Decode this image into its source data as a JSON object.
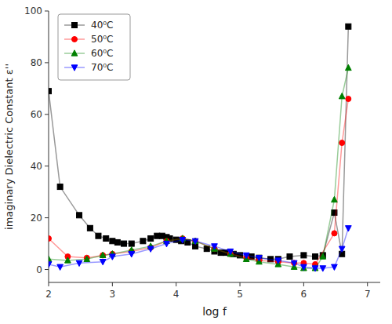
{
  "chart_data": {
    "type": "line",
    "xlabel": "log f",
    "ylabel": "imaginary Dielectric Constant ε''",
    "xlim": [
      2,
      7.2
    ],
    "ylim": [
      -5,
      100
    ],
    "xticks": [
      2,
      3,
      4,
      5,
      6,
      7
    ],
    "yticks": [
      0,
      20,
      40,
      60,
      80,
      100
    ],
    "grid": false,
    "legend": "upper left",
    "series": [
      {
        "name": "40⁰C",
        "color": "black",
        "marker": "square",
        "x": [
          2.0,
          2.18,
          2.48,
          2.65,
          2.78,
          2.9,
          3.0,
          3.08,
          3.18,
          3.3,
          3.48,
          3.6,
          3.7,
          3.78,
          3.85,
          3.9,
          4.0,
          4.08,
          4.18,
          4.3,
          4.48,
          4.6,
          4.7,
          4.78,
          4.9,
          5.0,
          5.18,
          5.3,
          5.48,
          5.6,
          5.78,
          6.0,
          6.18,
          6.3,
          6.48,
          6.6,
          6.7
        ],
        "values": [
          69,
          32,
          21,
          16,
          13,
          12,
          11,
          10.5,
          10,
          10,
          11,
          12,
          13,
          13,
          12.5,
          12,
          11.5,
          11,
          10.5,
          9,
          8,
          7,
          6.5,
          6.5,
          6,
          5.5,
          5,
          4.5,
          4,
          4,
          5,
          5.5,
          5,
          5.5,
          22,
          6,
          94
        ]
      },
      {
        "name": "50⁰C",
        "color": "red",
        "marker": "circle",
        "x": [
          2.0,
          2.3,
          2.6,
          2.85,
          3.0,
          3.3,
          3.6,
          3.85,
          4.1,
          4.3,
          4.6,
          4.85,
          5.1,
          5.3,
          5.6,
          5.85,
          6.0,
          6.18,
          6.48,
          6.6,
          6.7
        ],
        "values": [
          12,
          5,
          4.5,
          5.5,
          6,
          7,
          8.5,
          11,
          12,
          11,
          8,
          6,
          4.5,
          3.5,
          3,
          2.5,
          2.5,
          2,
          14,
          49,
          66
        ]
      },
      {
        "name": "60⁰C",
        "color": "green",
        "marker": "triangle-up",
        "x": [
          2.0,
          2.3,
          2.6,
          2.85,
          3.0,
          3.3,
          3.6,
          3.85,
          4.1,
          4.3,
          4.6,
          4.85,
          5.1,
          5.3,
          5.6,
          5.85,
          6.0,
          6.18,
          6.3,
          6.48,
          6.6,
          6.7
        ],
        "values": [
          4,
          3.5,
          4,
          5.5,
          6,
          7.5,
          9,
          11,
          12,
          11,
          8,
          6,
          4,
          3,
          2,
          1,
          0.5,
          0.5,
          5,
          27,
          67,
          78
        ]
      },
      {
        "name": "70⁰C",
        "color": "blue",
        "marker": "triangle-down",
        "x": [
          2.0,
          2.18,
          2.48,
          2.85,
          3.0,
          3.3,
          3.6,
          3.85,
          4.1,
          4.3,
          4.6,
          4.85,
          5.1,
          5.3,
          5.6,
          5.85,
          6.0,
          6.18,
          6.3,
          6.48,
          6.6,
          6.7
        ],
        "values": [
          2,
          1,
          2.5,
          3,
          5,
          6,
          8,
          10,
          11.5,
          11,
          9,
          7,
          5.5,
          4.5,
          3.5,
          2.5,
          1,
          0.5,
          0.5,
          1,
          8,
          16
        ]
      }
    ]
  }
}
